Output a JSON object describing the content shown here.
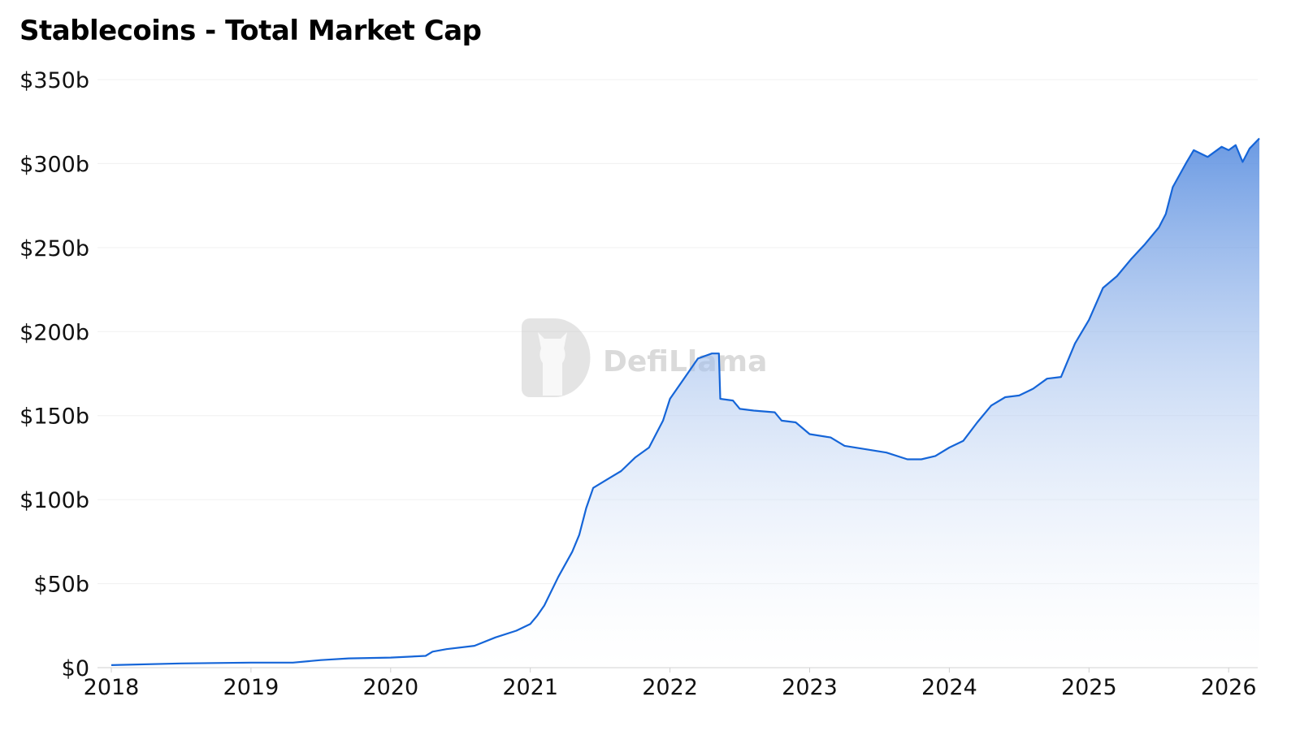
{
  "chart_data": {
    "type": "area",
    "title": "Stablecoins - Total Market Cap",
    "xlabel": "",
    "ylabel": "",
    "xlim": [
      2018,
      2026.22
    ],
    "ylim": [
      0,
      350
    ],
    "grid": true,
    "legend": "none",
    "colors": {
      "line": "#1565d8",
      "fill_top": "#5b8fe0",
      "fill_bottom": "#ffffff",
      "grid": "#f0f0f0"
    },
    "watermark": "DefiLlama",
    "x_ticks": [
      "2018",
      "2019",
      "2020",
      "2021",
      "2022",
      "2023",
      "2024",
      "2025",
      "2026"
    ],
    "y_ticks": [
      "$0",
      "$50b",
      "$100b",
      "$150b",
      "$200b",
      "$250b",
      "$300b",
      "$350b"
    ],
    "series": [
      {
        "x": [
          2018.0,
          2018.5,
          2019.0,
          2019.3,
          2019.5,
          2019.7,
          2020.0,
          2020.25,
          2020.3,
          2020.4,
          2020.6,
          2020.75,
          2020.9,
          2021.0,
          2021.05,
          2021.1,
          2021.2,
          2021.3,
          2021.35,
          2021.4,
          2021.45,
          2021.55,
          2021.65,
          2021.75,
          2021.85,
          2021.95,
          2022.0,
          2022.1,
          2022.2,
          2022.3,
          2022.35,
          2022.36,
          2022.45,
          2022.5,
          2022.6,
          2022.75,
          2022.8,
          2022.9,
          2023.0,
          2023.15,
          2023.25,
          2023.4,
          2023.55,
          2023.7,
          2023.8,
          2023.9,
          2024.0,
          2024.1,
          2024.2,
          2024.3,
          2024.4,
          2024.5,
          2024.6,
          2024.7,
          2024.8,
          2024.9,
          2025.0,
          2025.1,
          2025.2,
          2025.3,
          2025.4,
          2025.5,
          2025.55,
          2025.6,
          2025.7,
          2025.75,
          2025.85,
          2025.95,
          2026.0,
          2026.05,
          2026.1,
          2026.15,
          2026.22
        ],
        "y": [
          1.5,
          2.5,
          3,
          3,
          4.5,
          5.5,
          6,
          7,
          9.5,
          11,
          13,
          18,
          22,
          26,
          31,
          37,
          54,
          69,
          79,
          95,
          107,
          112,
          117,
          125,
          131,
          147,
          160,
          172,
          184,
          187,
          187,
          160,
          159,
          154,
          153,
          152,
          147,
          146,
          139,
          137,
          132,
          130,
          128,
          124,
          124,
          126,
          131,
          135,
          146,
          156,
          161,
          162,
          166,
          172,
          173,
          193,
          207,
          226,
          233,
          243,
          252,
          262,
          270,
          286,
          301,
          308,
          304,
          310,
          308,
          311,
          301,
          309,
          315
        ]
      }
    ]
  }
}
